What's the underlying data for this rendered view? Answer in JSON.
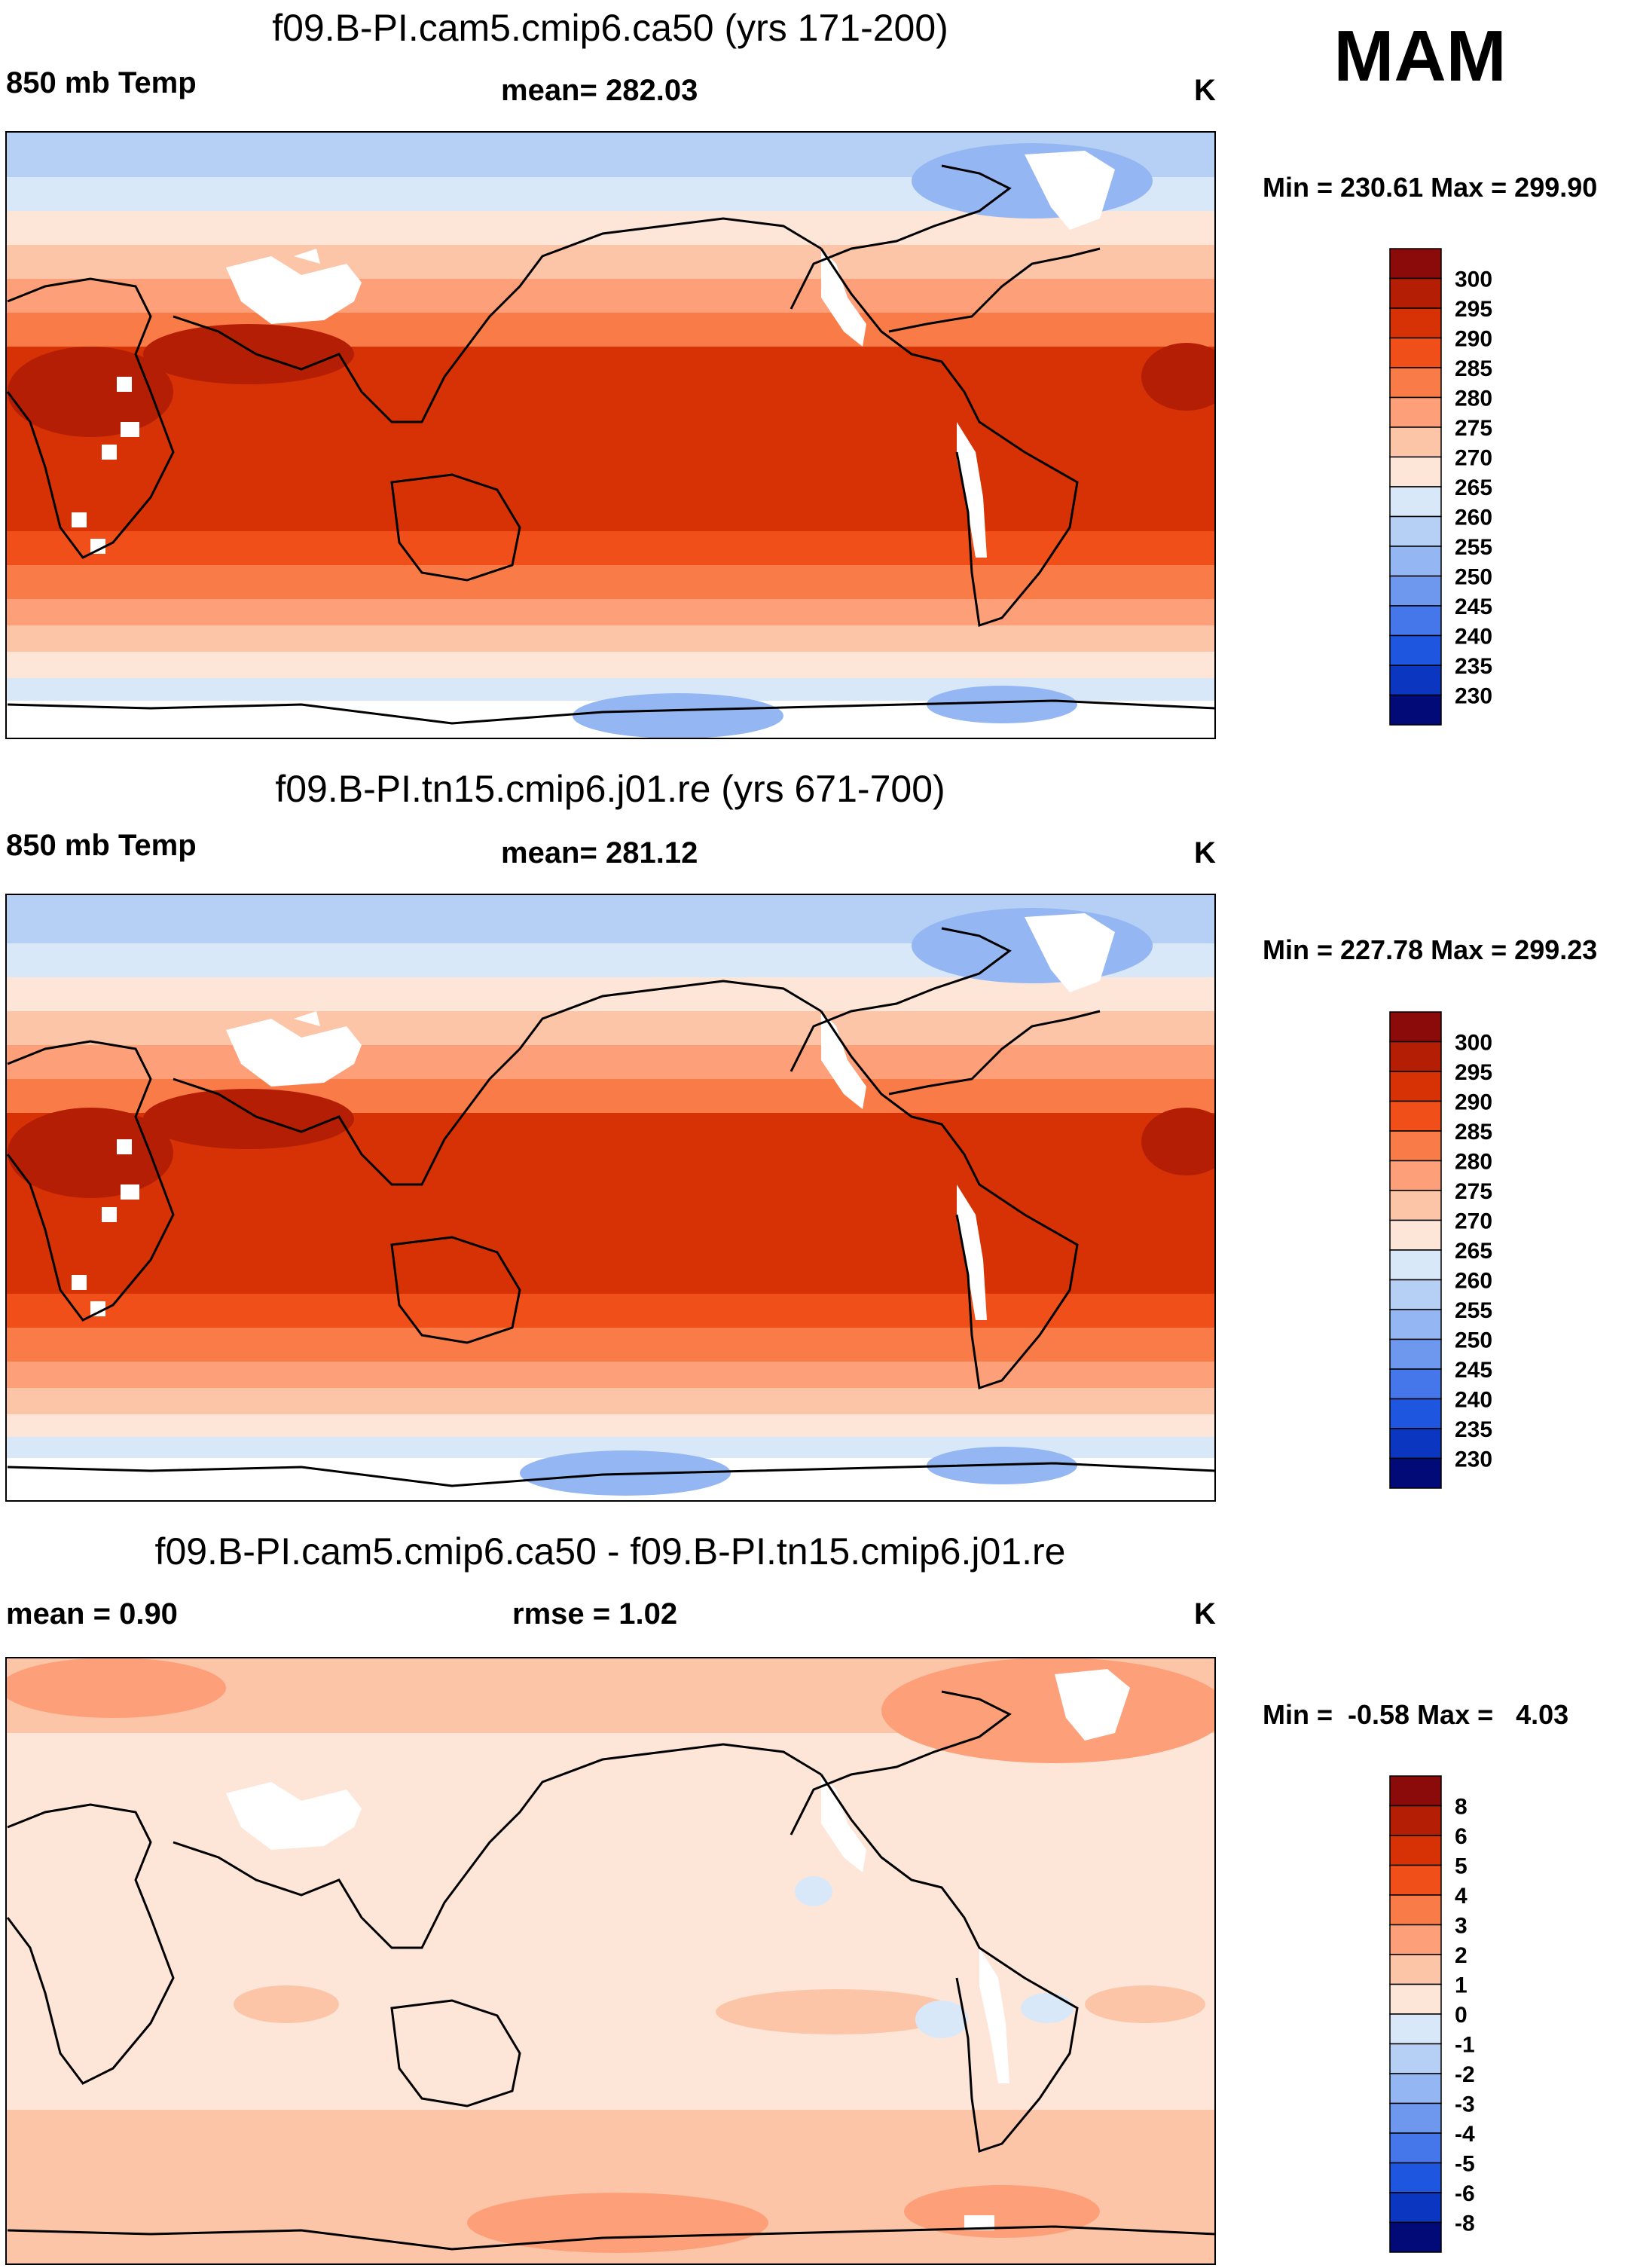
{
  "season": "MAM",
  "units": "K",
  "panels": [
    {
      "title": "f09.B-PI.cam5.cmip6.ca50 (yrs 171-200)",
      "left_label": "850 mb Temp",
      "center_label": "mean= 282.03",
      "right_label": "K",
      "minmax": "Min = 230.61 Max = 299.90"
    },
    {
      "title": "f09.B-PI.tn15.cmip6.j01.re (yrs 671-700)",
      "left_label": "850 mb Temp",
      "center_label": "mean= 281.12",
      "right_label": "K",
      "minmax": "Min = 227.78 Max = 299.23"
    },
    {
      "title": "f09.B-PI.cam5.cmip6.ca50 - f09.B-PI.tn15.cmip6.j01.re",
      "left_label": "mean =   0.90",
      "center_label": "rmse =   1.02",
      "right_label": "K",
      "minmax": "Min =  -0.58 Max =   4.03"
    }
  ],
  "colorbars": {
    "abs": {
      "labels": [
        "300",
        "295",
        "290",
        "285",
        "280",
        "275",
        "270",
        "265",
        "260",
        "255",
        "250",
        "245",
        "240",
        "235",
        "230"
      ],
      "colors": [
        "#8b0a0a",
        "#b41e04",
        "#d73205",
        "#f04f1a",
        "#f97c48",
        "#fda07a",
        "#fdc5a8",
        "#fde6d8",
        "#d8e8f8",
        "#b6d0f5",
        "#94b6f2",
        "#6e98ee",
        "#4576ea",
        "#1f56e0",
        "#0a36c0",
        "#020a78"
      ]
    },
    "diff": {
      "labels": [
        "8",
        "6",
        "5",
        "4",
        "3",
        "2",
        "1",
        "0",
        "-1",
        "-2",
        "-3",
        "-4",
        "-5",
        "-6",
        "-8"
      ],
      "colors": [
        "#8b0a0a",
        "#b41e04",
        "#d73205",
        "#f04f1a",
        "#f97c48",
        "#fda07a",
        "#fdc5a8",
        "#fde6d8",
        "#d8e8f8",
        "#b6d0f5",
        "#94b6f2",
        "#6e98ee",
        "#4576ea",
        "#1f56e0",
        "#0a36c0",
        "#020a78"
      ]
    }
  }
}
